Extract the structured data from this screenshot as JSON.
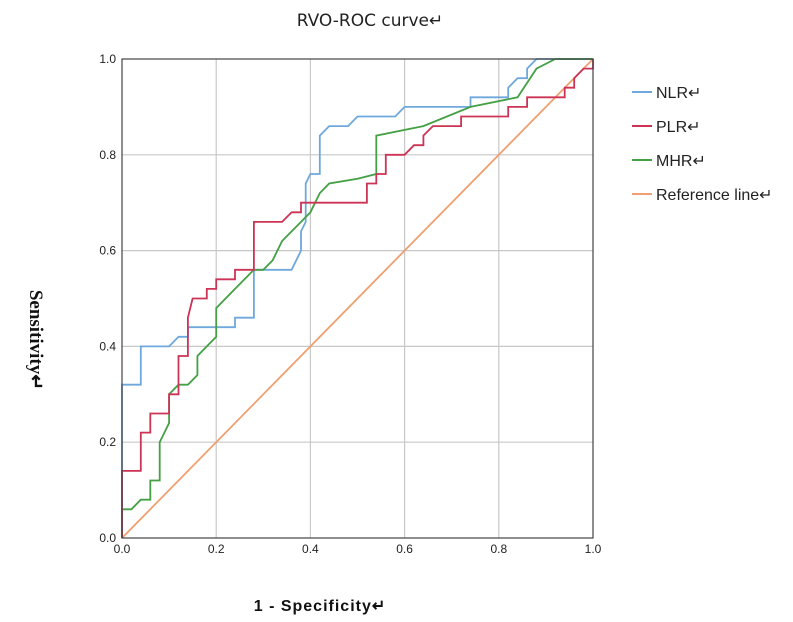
{
  "chart_data": {
    "type": "line",
    "title": "RVO-ROC curve↵",
    "xlabel": "1 - Specificity↵",
    "ylabel": "Sensitivity↵",
    "xlim": [
      0,
      1
    ],
    "ylim": [
      0,
      1
    ],
    "x_ticks": [
      "0.0",
      "0.2",
      "0.4",
      "0.6",
      "0.8",
      "1.0"
    ],
    "y_ticks": [
      "0.0",
      "0.2",
      "0.4",
      "0.6",
      "0.8",
      "1.0"
    ],
    "grid": true,
    "legend_position": "right",
    "series": [
      {
        "name": "NLR↵",
        "color": "#6fa8dc",
        "points": [
          [
            0,
            0
          ],
          [
            0,
            0.32
          ],
          [
            0.04,
            0.32
          ],
          [
            0.04,
            0.4
          ],
          [
            0.1,
            0.4
          ],
          [
            0.12,
            0.42
          ],
          [
            0.14,
            0.42
          ],
          [
            0.14,
            0.44
          ],
          [
            0.24,
            0.44
          ],
          [
            0.24,
            0.46
          ],
          [
            0.28,
            0.46
          ],
          [
            0.28,
            0.56
          ],
          [
            0.36,
            0.56
          ],
          [
            0.38,
            0.6
          ],
          [
            0.38,
            0.64
          ],
          [
            0.39,
            0.66
          ],
          [
            0.39,
            0.74
          ],
          [
            0.4,
            0.76
          ],
          [
            0.42,
            0.76
          ],
          [
            0.42,
            0.84
          ],
          [
            0.44,
            0.86
          ],
          [
            0.48,
            0.86
          ],
          [
            0.5,
            0.88
          ],
          [
            0.58,
            0.88
          ],
          [
            0.6,
            0.9
          ],
          [
            0.74,
            0.9
          ],
          [
            0.74,
            0.92
          ],
          [
            0.82,
            0.92
          ],
          [
            0.82,
            0.94
          ],
          [
            0.84,
            0.96
          ],
          [
            0.86,
            0.96
          ],
          [
            0.86,
            0.98
          ],
          [
            0.88,
            1.0
          ],
          [
            1.0,
            1.0
          ]
        ]
      },
      {
        "name": "PLR↵",
        "color": "#cc3355",
        "points": [
          [
            0,
            0
          ],
          [
            0,
            0.14
          ],
          [
            0.04,
            0.14
          ],
          [
            0.04,
            0.22
          ],
          [
            0.06,
            0.22
          ],
          [
            0.06,
            0.26
          ],
          [
            0.1,
            0.26
          ],
          [
            0.1,
            0.3
          ],
          [
            0.12,
            0.3
          ],
          [
            0.12,
            0.38
          ],
          [
            0.14,
            0.38
          ],
          [
            0.14,
            0.46
          ],
          [
            0.15,
            0.5
          ],
          [
            0.18,
            0.5
          ],
          [
            0.18,
            0.52
          ],
          [
            0.2,
            0.52
          ],
          [
            0.2,
            0.54
          ],
          [
            0.24,
            0.54
          ],
          [
            0.24,
            0.56
          ],
          [
            0.28,
            0.56
          ],
          [
            0.28,
            0.66
          ],
          [
            0.34,
            0.66
          ],
          [
            0.36,
            0.68
          ],
          [
            0.38,
            0.68
          ],
          [
            0.38,
            0.7
          ],
          [
            0.52,
            0.7
          ],
          [
            0.52,
            0.74
          ],
          [
            0.54,
            0.74
          ],
          [
            0.54,
            0.76
          ],
          [
            0.56,
            0.76
          ],
          [
            0.56,
            0.8
          ],
          [
            0.6,
            0.8
          ],
          [
            0.62,
            0.82
          ],
          [
            0.64,
            0.82
          ],
          [
            0.64,
            0.84
          ],
          [
            0.66,
            0.86
          ],
          [
            0.72,
            0.86
          ],
          [
            0.72,
            0.88
          ],
          [
            0.82,
            0.88
          ],
          [
            0.82,
            0.9
          ],
          [
            0.86,
            0.9
          ],
          [
            0.86,
            0.92
          ],
          [
            0.94,
            0.92
          ],
          [
            0.94,
            0.94
          ],
          [
            0.96,
            0.94
          ],
          [
            0.96,
            0.96
          ],
          [
            0.98,
            0.98
          ],
          [
            1.0,
            0.98
          ],
          [
            1.0,
            1.0
          ]
        ]
      },
      {
        "name": "MHR↵",
        "color": "#44a044",
        "points": [
          [
            0,
            0
          ],
          [
            0,
            0.06
          ],
          [
            0.02,
            0.06
          ],
          [
            0.04,
            0.08
          ],
          [
            0.06,
            0.08
          ],
          [
            0.06,
            0.12
          ],
          [
            0.08,
            0.12
          ],
          [
            0.08,
            0.2
          ],
          [
            0.1,
            0.24
          ],
          [
            0.1,
            0.3
          ],
          [
            0.12,
            0.32
          ],
          [
            0.14,
            0.32
          ],
          [
            0.16,
            0.34
          ],
          [
            0.16,
            0.38
          ],
          [
            0.2,
            0.42
          ],
          [
            0.2,
            0.48
          ],
          [
            0.24,
            0.52
          ],
          [
            0.28,
            0.56
          ],
          [
            0.3,
            0.56
          ],
          [
            0.32,
            0.58
          ],
          [
            0.34,
            0.62
          ],
          [
            0.38,
            0.66
          ],
          [
            0.4,
            0.68
          ],
          [
            0.42,
            0.72
          ],
          [
            0.44,
            0.74
          ],
          [
            0.5,
            0.75
          ],
          [
            0.54,
            0.76
          ],
          [
            0.54,
            0.84
          ],
          [
            0.64,
            0.86
          ],
          [
            0.74,
            0.9
          ],
          [
            0.84,
            0.92
          ],
          [
            0.88,
            0.98
          ],
          [
            0.92,
            1.0
          ],
          [
            1.0,
            1.0
          ]
        ]
      },
      {
        "name": "Reference line↵",
        "color": "#f0a070",
        "points": [
          [
            0,
            0
          ],
          [
            1,
            1
          ]
        ]
      }
    ]
  }
}
